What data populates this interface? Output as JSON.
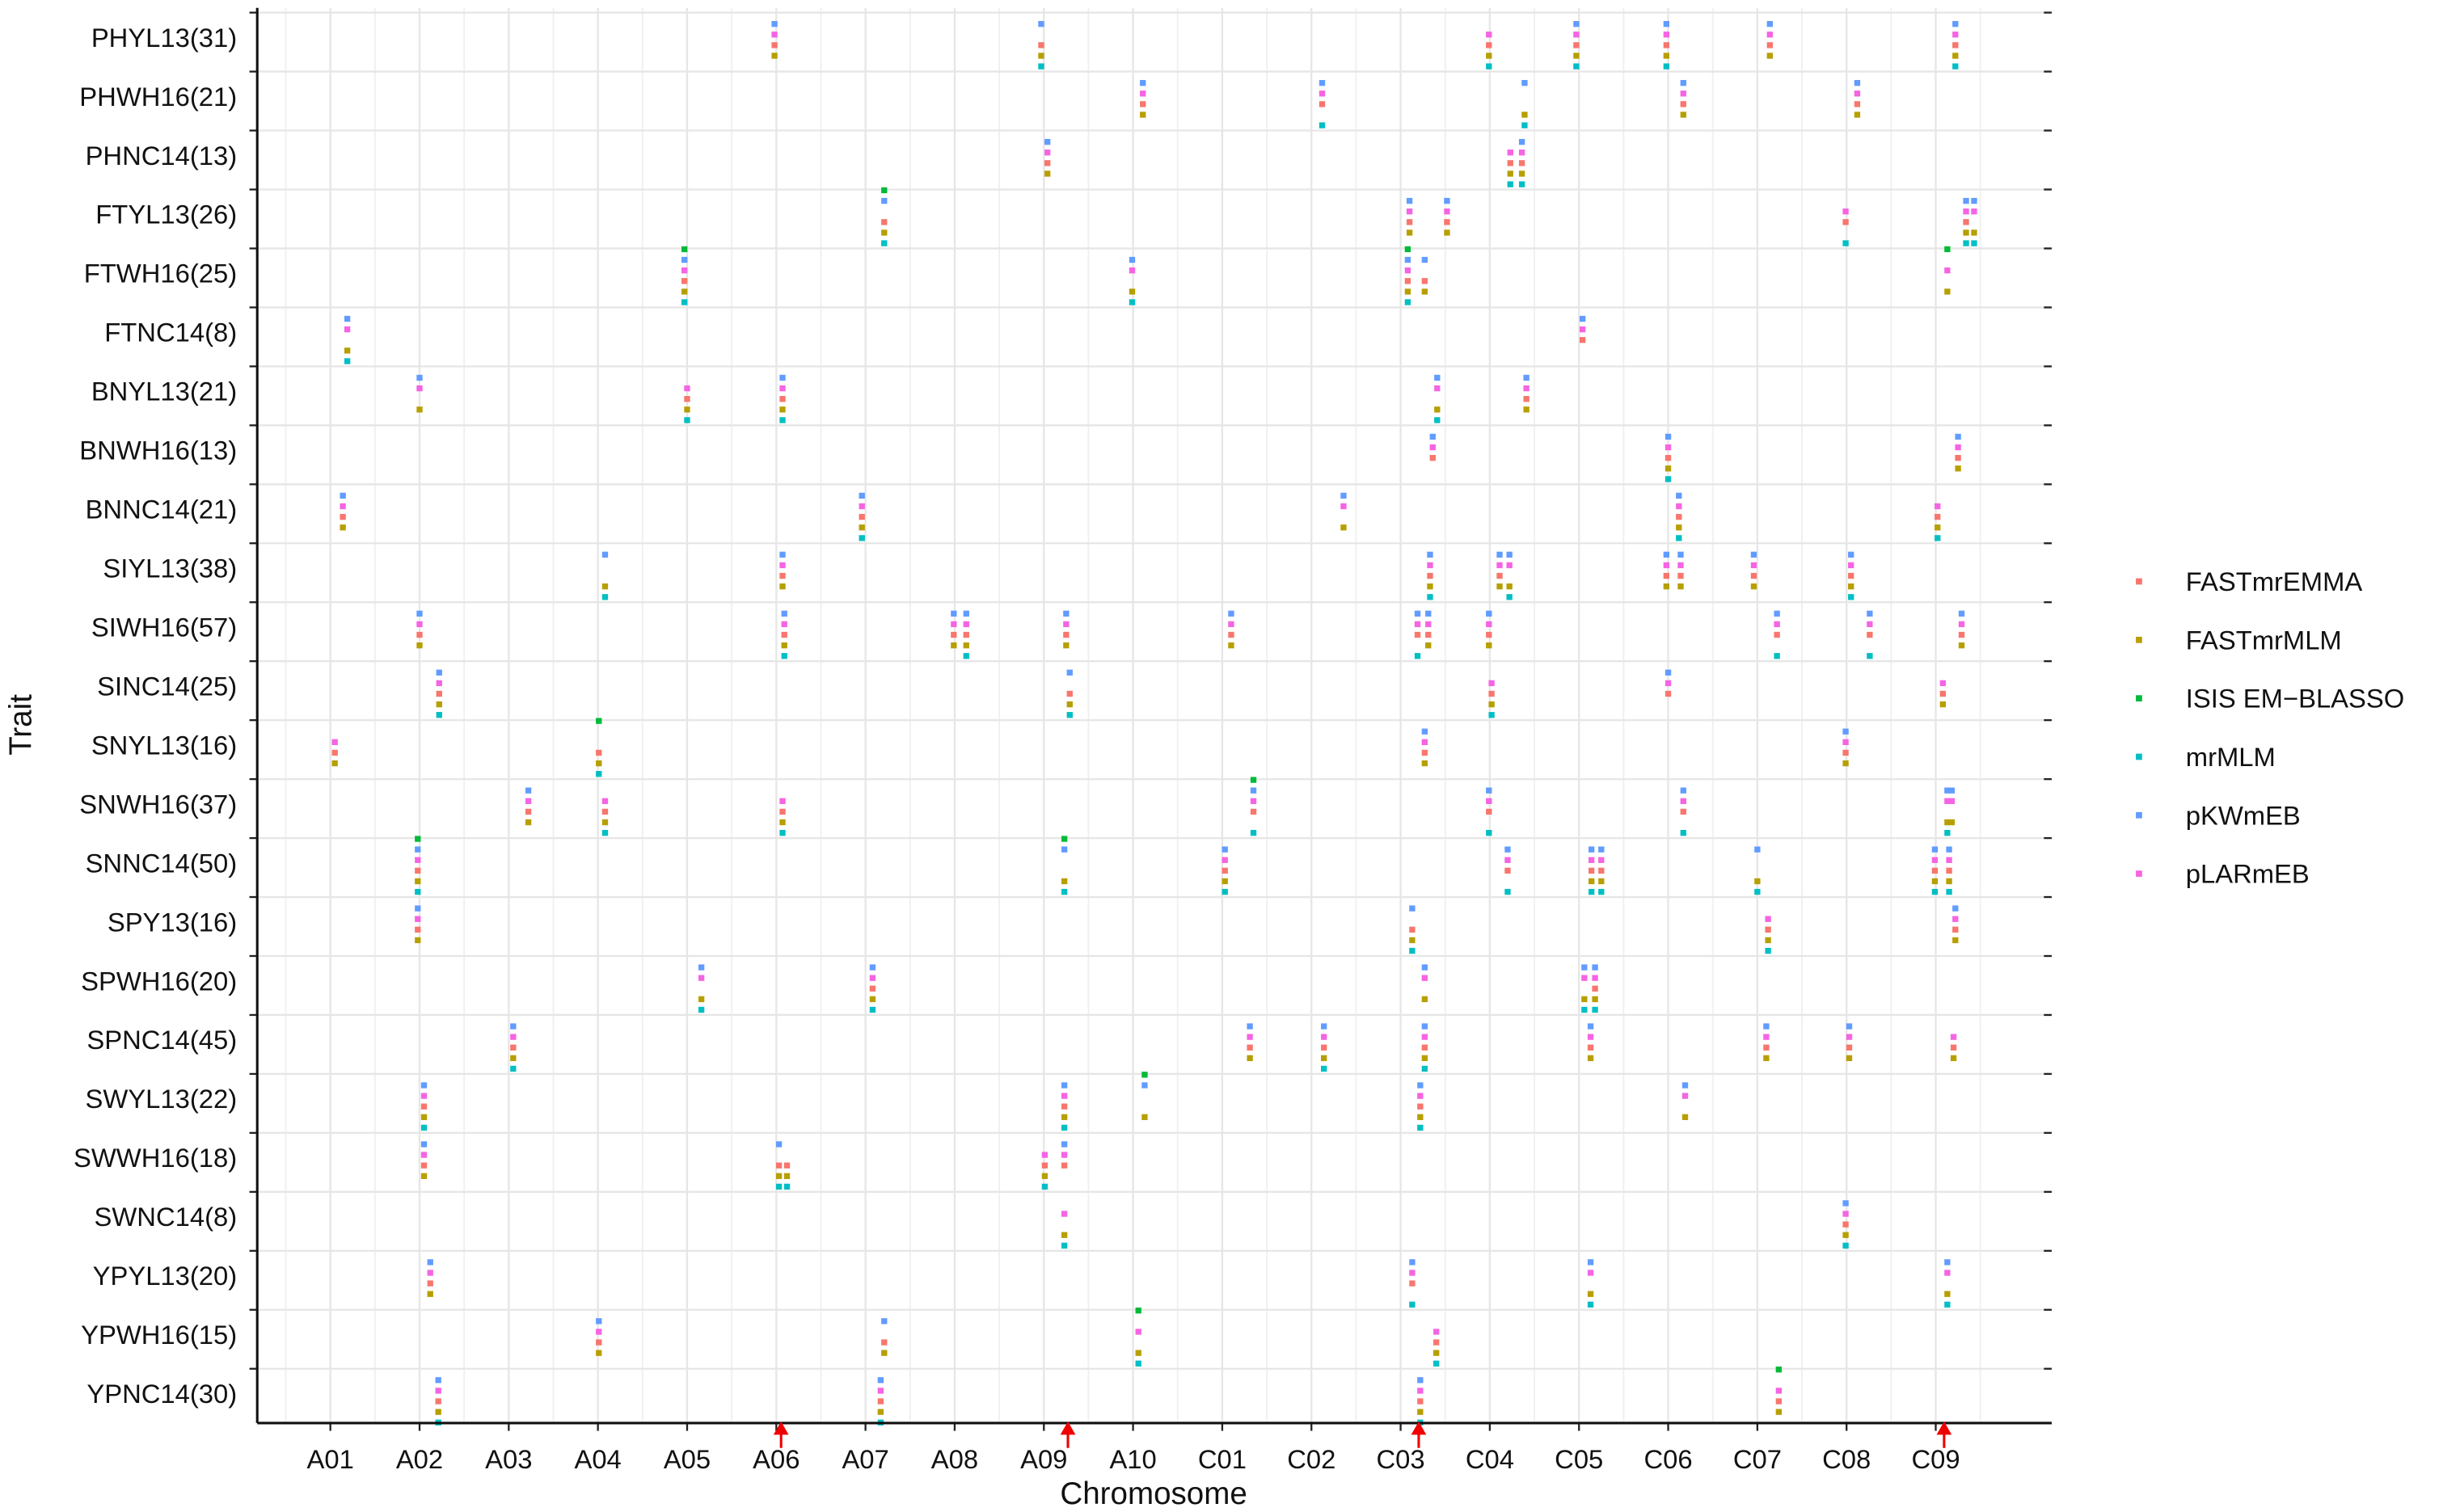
{
  "chart_data": {
    "type": "scatter",
    "xlabel": "Chromosome",
    "ylabel": "Trait",
    "categories": [
      "PHYL13(31)",
      "PHWH16(21)",
      "PHNC14(13)",
      "FTYL13(26)",
      "FTWH16(25)",
      "FTNC14(8)",
      "BNYL13(21)",
      "BNWH16(13)",
      "BNNC14(21)",
      "SIYL13(38)",
      "SIWH16(57)",
      "SINC14(25)",
      "SNYL13(16)",
      "SNWH16(37)",
      "SNNC14(50)",
      "SPY13(16)",
      "SPWH16(20)",
      "SPNC14(45)",
      "SWYL13(22)",
      "SWWH16(18)",
      "SWNC14(8)",
      "YPYL13(20)",
      "YPWH16(15)",
      "YPNC14(30)"
    ],
    "xlim": [
      0.18,
      20.3
    ],
    "xticks": [
      {
        "value": 1,
        "label": "A01"
      },
      {
        "value": 2,
        "label": "A02"
      },
      {
        "value": 3,
        "label": "A03"
      },
      {
        "value": 4,
        "label": "A04"
      },
      {
        "value": 5,
        "label": "A05"
      },
      {
        "value": 6,
        "label": "A06"
      },
      {
        "value": 7,
        "label": "A07"
      },
      {
        "value": 8,
        "label": "A08"
      },
      {
        "value": 9,
        "label": "A09"
      },
      {
        "value": 10,
        "label": "A10"
      },
      {
        "value": 11,
        "label": "C01"
      },
      {
        "value": 12,
        "label": "C02"
      },
      {
        "value": 13,
        "label": "C03"
      },
      {
        "value": 14,
        "label": "C04"
      },
      {
        "value": 15,
        "label": "C05"
      },
      {
        "value": 16,
        "label": "C06"
      },
      {
        "value": 17,
        "label": "C07"
      },
      {
        "value": 18,
        "label": "C08"
      },
      {
        "value": 19,
        "label": "C09"
      }
    ],
    "grid": true,
    "legend": "right",
    "series": [
      {
        "name": "FASTmrEMMA",
        "color": "#F8766D",
        "x": [
          [
            5.98,
            8.97,
            13.99,
            14.97,
            15.98,
            17.14,
            19.22
          ],
          [
            10.11,
            12.12,
            16.17,
            18.12
          ],
          [
            9.04,
            14.23,
            14.36
          ],
          [
            7.21,
            13.1,
            13.52,
            17.99,
            19.34
          ],
          [
            4.97,
            13.08,
            13.27
          ],
          [
            15.04
          ],
          [
            5.0,
            6.07,
            14.41
          ],
          [
            13.36,
            16.0,
            19.25
          ],
          [
            1.14,
            6.96,
            16.12,
            19.02
          ],
          [
            6.07,
            13.33,
            14.11,
            15.98,
            16.14,
            16.96,
            18.05
          ],
          [
            2.0,
            6.09,
            7.99,
            8.13,
            9.25,
            11.1,
            13.19,
            13.31,
            13.99,
            17.22,
            18.26,
            19.29
          ],
          [
            2.22,
            9.29,
            14.02,
            16.0,
            19.08
          ],
          [
            1.05,
            4.01,
            13.27,
            17.99
          ],
          [
            3.22,
            4.08,
            6.07,
            11.35,
            13.99,
            16.17
          ],
          [
            1.98,
            11.03,
            14.2,
            15.14,
            15.25,
            18.99,
            19.15
          ],
          [
            1.98,
            13.13,
            17.12,
            19.22
          ],
          [
            7.08,
            15.18
          ],
          [
            3.05,
            11.31,
            12.14,
            13.27,
            15.13,
            17.1,
            18.03,
            19.2
          ],
          [
            2.05,
            9.23,
            13.22
          ],
          [
            2.05,
            6.03,
            6.12,
            9.01,
            9.23
          ],
          [
            17.99
          ],
          [
            2.12,
            13.13
          ],
          [
            4.01,
            7.21,
            13.4
          ],
          [
            2.21,
            7.17,
            13.22,
            17.24
          ]
        ]
      },
      {
        "name": "FASTmrMLM",
        "color": "#B79F00",
        "x": [
          [
            5.98,
            8.97,
            13.99,
            14.97,
            15.98,
            17.14,
            19.22
          ],
          [
            10.11,
            14.39,
            16.17,
            18.12
          ],
          [
            9.04,
            14.23,
            14.36
          ],
          [
            7.21,
            13.1,
            13.52,
            19.34,
            19.43
          ],
          [
            4.97,
            9.99,
            13.08,
            13.27,
            19.13
          ],
          [
            1.19
          ],
          [
            2.0,
            5.0,
            6.07,
            13.41,
            14.41
          ],
          [
            16.0,
            19.25
          ],
          [
            1.14,
            6.96,
            12.36,
            16.12,
            19.02
          ],
          [
            4.08,
            6.07,
            13.33,
            14.11,
            14.22,
            15.98,
            16.14,
            16.96,
            18.05
          ],
          [
            2.0,
            6.09,
            7.99,
            8.13,
            9.25,
            11.1,
            13.31,
            13.99,
            19.29
          ],
          [
            2.22,
            9.29,
            14.02,
            19.08
          ],
          [
            1.05,
            4.01,
            13.27,
            17.99
          ],
          [
            3.22,
            4.08,
            6.07,
            19.13,
            19.18
          ],
          [
            1.98,
            9.23,
            11.03,
            15.14,
            15.25,
            17.0,
            18.99,
            19.15
          ],
          [
            1.98,
            13.13,
            17.12,
            19.22
          ],
          [
            5.16,
            7.08,
            13.27,
            15.06,
            15.18
          ],
          [
            3.05,
            11.31,
            12.14,
            13.27,
            15.13,
            17.1,
            18.03,
            19.2
          ],
          [
            2.05,
            9.23,
            10.13,
            13.22,
            16.19
          ],
          [
            2.05,
            6.03,
            6.12,
            9.01
          ],
          [
            9.23,
            17.99
          ],
          [
            2.12,
            15.13,
            19.13
          ],
          [
            4.01,
            7.21,
            10.06,
            13.4
          ],
          [
            2.21,
            7.17,
            13.22,
            17.24
          ]
        ]
      },
      {
        "name": "ISIS EM−BLASSO",
        "color": "#00BA38",
        "x": [
          [],
          [],
          [],
          [
            7.21
          ],
          [
            4.97,
            13.08,
            19.13
          ],
          [],
          [],
          [],
          [],
          [],
          [],
          [],
          [
            4.01
          ],
          [
            11.35
          ],
          [
            1.98,
            9.23
          ],
          [],
          [],
          [],
          [
            10.13
          ],
          [],
          [],
          [],
          [
            10.06
          ],
          [
            17.24
          ]
        ]
      },
      {
        "name": "mrMLM",
        "color": "#00BFC4",
        "x": [
          [
            8.97,
            13.99,
            14.97,
            15.98,
            19.22
          ],
          [
            12.12,
            14.39
          ],
          [
            14.23,
            14.36
          ],
          [
            7.21,
            17.99,
            19.34,
            19.43
          ],
          [
            4.97,
            9.99,
            13.08
          ],
          [
            1.19
          ],
          [
            5.0,
            6.07,
            13.41
          ],
          [
            16.0
          ],
          [
            6.96,
            16.12,
            19.02
          ],
          [
            4.08,
            13.33,
            14.22,
            18.05
          ],
          [
            6.09,
            8.13,
            13.19,
            17.22,
            18.26
          ],
          [
            2.22,
            9.29,
            14.02
          ],
          [
            4.01
          ],
          [
            4.08,
            6.07,
            11.35,
            13.99,
            16.17,
            19.13
          ],
          [
            1.98,
            9.23,
            11.03,
            14.2,
            15.14,
            15.25,
            17.0,
            18.99,
            19.15
          ],
          [
            13.13,
            17.12
          ],
          [
            5.16,
            7.08,
            15.06,
            15.18
          ],
          [
            3.05,
            12.14,
            13.27
          ],
          [
            2.05,
            9.23,
            13.22
          ],
          [
            6.03,
            6.12,
            9.01
          ],
          [
            9.23,
            17.99
          ],
          [
            13.13,
            15.13,
            19.13
          ],
          [
            10.06,
            13.4
          ],
          [
            2.21,
            7.17,
            13.22
          ]
        ]
      },
      {
        "name": "pKWmEB",
        "color": "#619CFF",
        "x": [
          [
            5.98,
            8.97,
            14.97,
            15.98,
            17.14,
            19.22
          ],
          [
            10.11,
            12.12,
            14.39,
            16.17,
            18.12
          ],
          [
            9.04,
            14.36
          ],
          [
            7.21,
            13.1,
            13.52,
            19.34,
            19.43
          ],
          [
            4.97,
            9.99,
            13.08,
            13.27
          ],
          [
            1.19,
            15.04
          ],
          [
            2.0,
            6.07,
            13.41,
            14.41
          ],
          [
            13.36,
            16.0,
            19.25
          ],
          [
            1.14,
            6.96,
            12.36,
            16.12
          ],
          [
            4.08,
            6.07,
            13.33,
            14.11,
            14.22,
            15.98,
            16.14,
            16.96,
            18.05
          ],
          [
            2.0,
            6.09,
            7.99,
            8.13,
            9.25,
            11.1,
            13.19,
            13.31,
            13.99,
            17.22,
            18.26,
            19.29
          ],
          [
            2.22,
            9.29,
            16.0
          ],
          [
            13.27,
            17.99
          ],
          [
            3.22,
            11.35,
            13.99,
            16.17,
            19.13,
            19.18
          ],
          [
            1.98,
            9.23,
            11.03,
            14.2,
            15.14,
            15.25,
            17.0,
            18.99,
            19.15
          ],
          [
            1.98,
            13.13,
            19.22
          ],
          [
            5.16,
            7.08,
            13.27,
            15.06,
            15.18
          ],
          [
            3.05,
            11.31,
            12.14,
            13.27,
            15.13,
            17.1,
            18.03
          ],
          [
            2.05,
            9.23,
            10.13,
            13.22,
            16.19
          ],
          [
            2.05,
            6.03,
            9.23
          ],
          [
            17.99
          ],
          [
            2.12,
            13.13,
            15.13,
            19.13
          ],
          [
            4.01,
            7.21
          ],
          [
            2.21,
            7.17,
            13.22
          ]
        ]
      },
      {
        "name": "pLARmEB",
        "color": "#F564E3",
        "x": [
          [
            5.98,
            13.99,
            14.97,
            15.98,
            17.14,
            19.22
          ],
          [
            10.11,
            12.12,
            16.17,
            18.12
          ],
          [
            9.04,
            14.23,
            14.36
          ],
          [
            13.1,
            13.52,
            17.99,
            19.34,
            19.43
          ],
          [
            4.97,
            9.99,
            13.08,
            19.13
          ],
          [
            1.19,
            15.04
          ],
          [
            2.0,
            5.0,
            6.07,
            13.41,
            14.41
          ],
          [
            13.36,
            16.0,
            19.25
          ],
          [
            1.14,
            6.96,
            12.36,
            16.12,
            19.02
          ],
          [
            6.07,
            13.33,
            14.11,
            14.22,
            15.98,
            16.14,
            16.96,
            18.05
          ],
          [
            2.0,
            6.09,
            7.99,
            8.13,
            9.25,
            11.1,
            13.19,
            13.31,
            13.99,
            17.22,
            18.26,
            19.29
          ],
          [
            2.22,
            14.02,
            16.0,
            19.08
          ],
          [
            1.05,
            13.27,
            17.99
          ],
          [
            3.22,
            4.08,
            6.07,
            11.35,
            13.99,
            16.17,
            19.13,
            19.18
          ],
          [
            1.98,
            11.03,
            14.2,
            15.14,
            15.25,
            18.99,
            19.15
          ],
          [
            1.98,
            17.12,
            19.22
          ],
          [
            5.16,
            7.08,
            13.27,
            15.06,
            15.18
          ],
          [
            3.05,
            11.31,
            12.14,
            13.27,
            15.13,
            17.1,
            18.03,
            19.2
          ],
          [
            2.05,
            9.23,
            13.22,
            16.19
          ],
          [
            2.05,
            9.01,
            9.23
          ],
          [
            9.23,
            17.99
          ],
          [
            2.12,
            13.13,
            15.13,
            19.13
          ],
          [
            4.01,
            10.06,
            13.4
          ],
          [
            2.21,
            7.17,
            13.22,
            17.24
          ]
        ]
      }
    ]
  }
}
